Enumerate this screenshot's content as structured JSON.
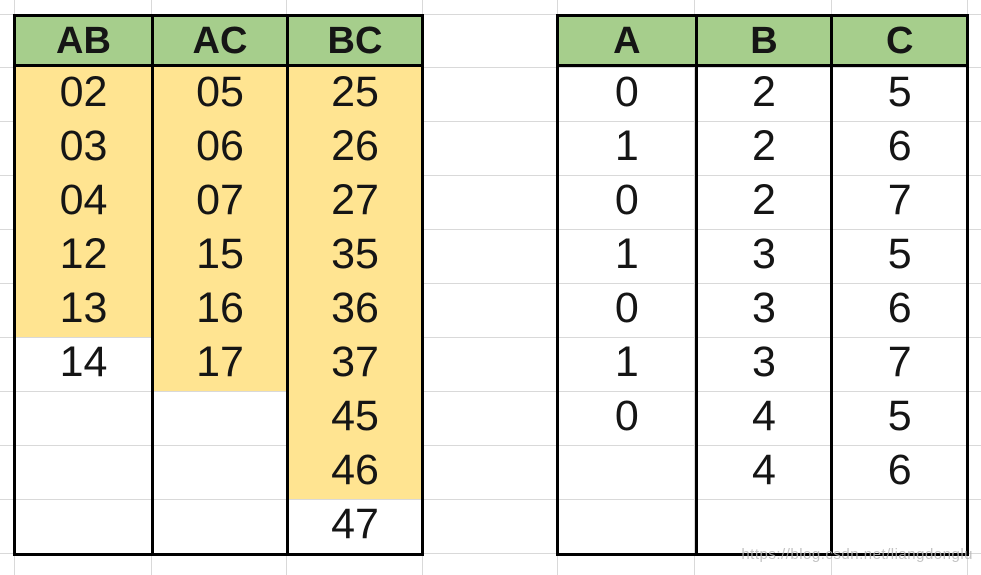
{
  "watermark": {
    "text": "https://blog.csdn.net/liangdonglu"
  },
  "colors": {
    "header_fill": "#A6CE8C",
    "highlight_fill": "#FFE491",
    "border": "#000000",
    "gridline": "#D9D9D9",
    "text": "#151515",
    "watermark_text": "#B9B9B9"
  },
  "left_table": {
    "title": "pair-combinations-table",
    "num_rows": 9,
    "headers": [
      "AB",
      "AC",
      "BC"
    ],
    "columns": [
      {
        "header": "AB",
        "values": [
          "02",
          "03",
          "04",
          "12",
          "13",
          "14",
          "",
          "",
          ""
        ],
        "highlighted_count": 5
      },
      {
        "header": "AC",
        "values": [
          "05",
          "06",
          "07",
          "15",
          "16",
          "17",
          "",
          "",
          ""
        ],
        "highlighted_count": 6
      },
      {
        "header": "BC",
        "values": [
          "25",
          "26",
          "27",
          "35",
          "36",
          "37",
          "45",
          "46",
          "47"
        ],
        "highlighted_count": 8
      }
    ]
  },
  "right_table": {
    "title": "single-values-table",
    "num_rows": 9,
    "headers": [
      "A",
      "B",
      "C"
    ],
    "rows": [
      [
        "0",
        "2",
        "5"
      ],
      [
        "1",
        "2",
        "6"
      ],
      [
        "0",
        "2",
        "7"
      ],
      [
        "1",
        "3",
        "5"
      ],
      [
        "0",
        "3",
        "6"
      ],
      [
        "1",
        "3",
        "7"
      ],
      [
        "0",
        "4",
        "5"
      ],
      [
        "",
        "4",
        "6"
      ],
      [
        "",
        "",
        ""
      ]
    ]
  }
}
